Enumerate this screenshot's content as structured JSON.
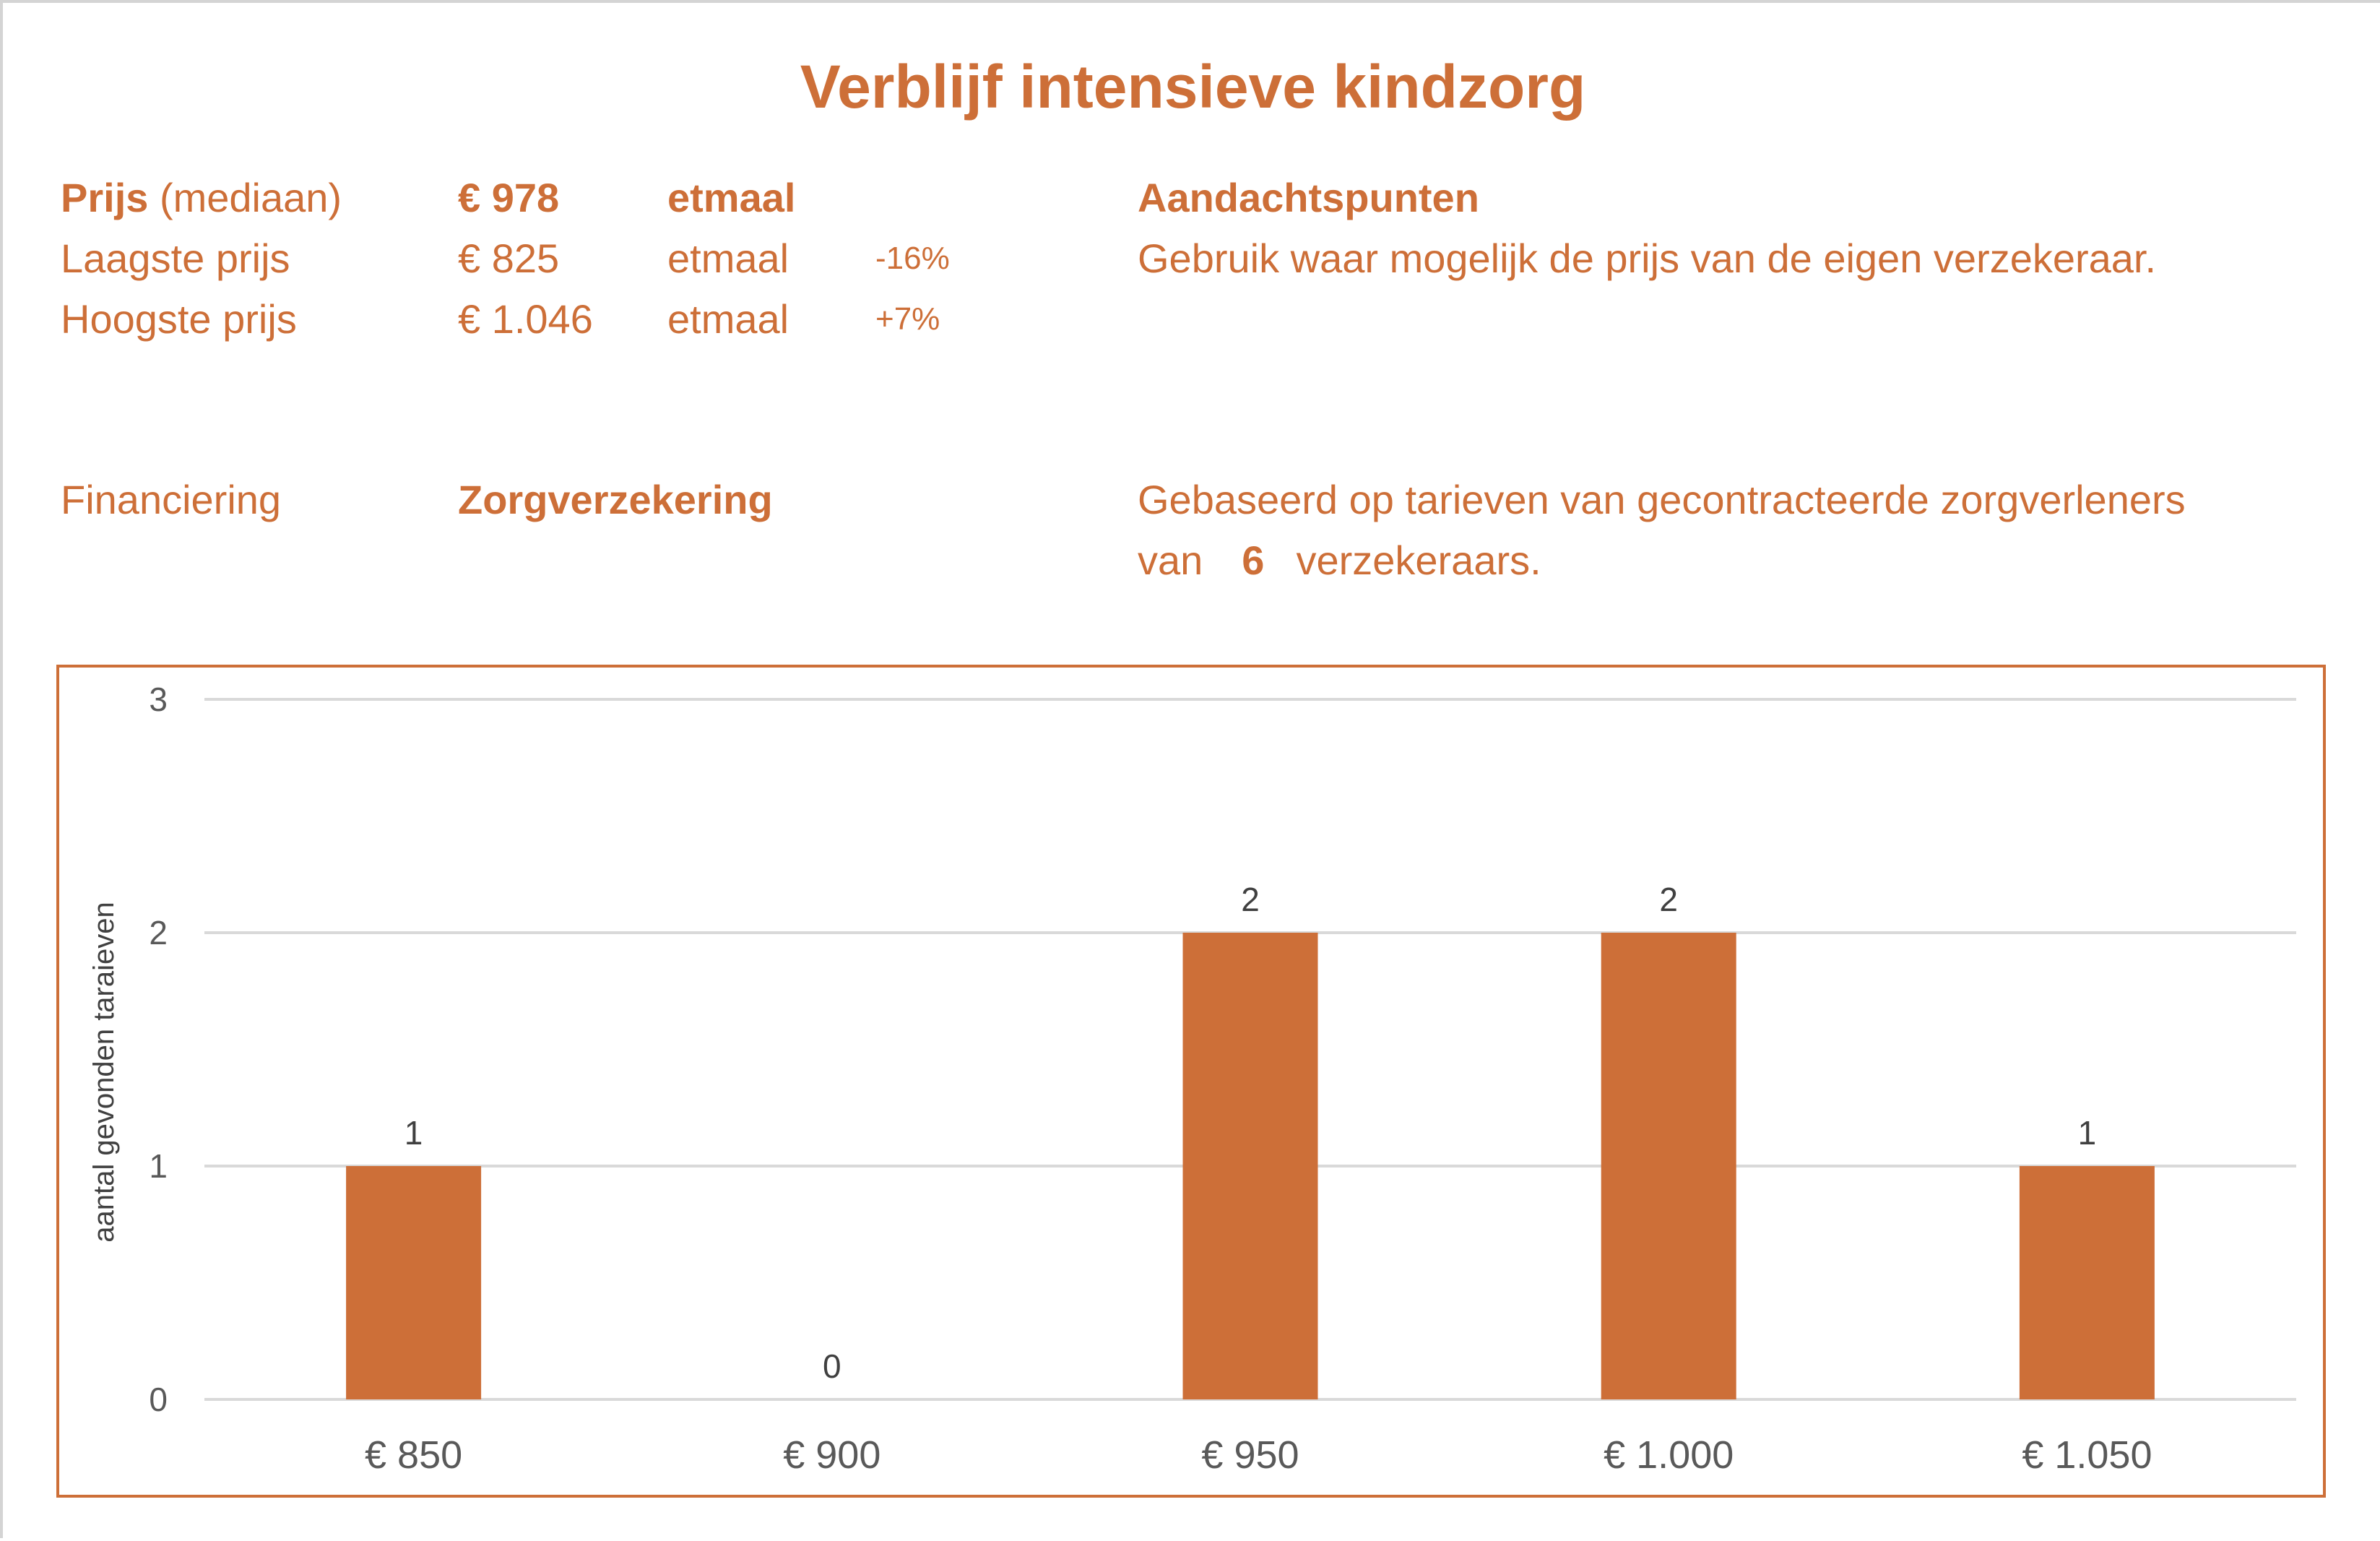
{
  "title": "Verblijf intensieve kindzorg",
  "prices": {
    "median": {
      "label_bold": "Prijs",
      "label_rest": " (mediaan)",
      "value": "€ 978",
      "unit": "etmaal"
    },
    "lowest": {
      "label": "Laagste prijs",
      "value": "€ 825",
      "unit": "etmaal",
      "pct": "-16%"
    },
    "highest": {
      "label": "Hoogste prijs",
      "value": "€ 1.046",
      "unit": "etmaal",
      "pct": "+7%"
    }
  },
  "attention": {
    "heading": "Aandachtspunten",
    "text": "Gebruik waar mogelijk de prijs van de eigen verzekeraar."
  },
  "financing": {
    "label": "Financiering",
    "value": "Zorgverzekering"
  },
  "basis": {
    "line1": "Gebaseerd op tarieven van gecontracteerde zorgverleners",
    "pre": "van",
    "count": "6",
    "post": "verzekeraars."
  },
  "colors": {
    "accent": "#CD6F38",
    "grid": "#D9D9D9",
    "text": "#595959"
  },
  "chart_data": {
    "type": "bar",
    "categories": [
      "€ 850",
      "€ 900",
      "€ 950",
      "€ 1.000",
      "€ 1.050"
    ],
    "values": [
      1,
      0,
      2,
      2,
      1
    ],
    "data_labels": [
      "1",
      "0",
      "2",
      "2",
      "1"
    ],
    "title": "",
    "xlabel": "",
    "ylabel": "aantal gevonden taraieven",
    "ylim": [
      0,
      3
    ],
    "yticks": [
      "0",
      "1",
      "2",
      "3"
    ],
    "grid": true,
    "legend": "none"
  }
}
